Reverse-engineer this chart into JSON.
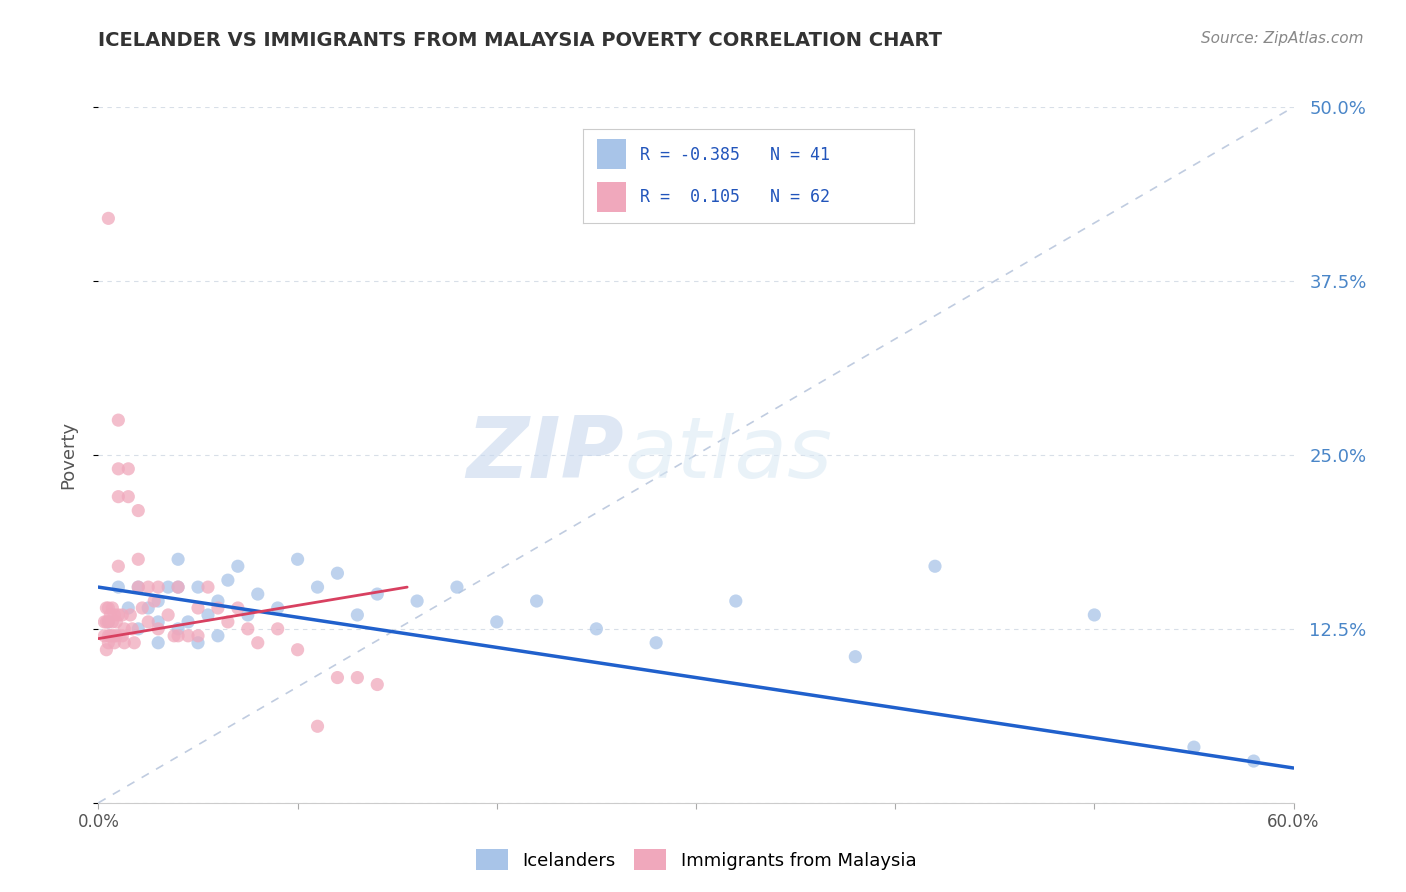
{
  "title": "ICELANDER VS IMMIGRANTS FROM MALAYSIA POVERTY CORRELATION CHART",
  "source_text": "Source: ZipAtlas.com",
  "ylabel": "Poverty",
  "legend_blue_label": "Icelanders",
  "legend_pink_label": "Immigrants from Malaysia",
  "legend_blue_r": "R = -0.385",
  "legend_blue_n": "N = 41",
  "legend_pink_r": "R =  0.105",
  "legend_pink_n": "N = 62",
  "blue_color": "#a8c4e8",
  "pink_color": "#f0a8bc",
  "blue_line_color": "#2060cc",
  "pink_line_color": "#d84060",
  "watermark_zip": "ZIP",
  "watermark_atlas": "atlas",
  "xmin": 0.0,
  "xmax": 0.6,
  "ymin": 0.0,
  "ymax": 0.5,
  "yticks": [
    0.0,
    0.125,
    0.25,
    0.375,
    0.5
  ],
  "ytick_labels_right": [
    "",
    "12.5%",
    "25.0%",
    "37.5%",
    "50.0%"
  ],
  "xtick_positions": [
    0.0,
    0.1,
    0.2,
    0.3,
    0.4,
    0.5,
    0.6
  ],
  "xtick_labels": [
    "0.0%",
    "",
    "",
    "",
    "",
    "",
    "60.0%"
  ],
  "grid_color": "#d8dfe8",
  "diag_line_x": [
    0.0,
    0.6
  ],
  "diag_line_y": [
    0.0,
    0.5
  ],
  "blue_trend_x": [
    0.0,
    0.6
  ],
  "blue_trend_y": [
    0.155,
    0.025
  ],
  "pink_trend_x": [
    0.0,
    0.155
  ],
  "pink_trend_y": [
    0.118,
    0.155
  ],
  "blue_dots_x": [
    0.005,
    0.01,
    0.015,
    0.02,
    0.02,
    0.025,
    0.03,
    0.03,
    0.03,
    0.035,
    0.04,
    0.04,
    0.04,
    0.045,
    0.05,
    0.05,
    0.055,
    0.06,
    0.06,
    0.065,
    0.07,
    0.075,
    0.08,
    0.09,
    0.1,
    0.11,
    0.12,
    0.13,
    0.14,
    0.16,
    0.18,
    0.2,
    0.22,
    0.25,
    0.28,
    0.32,
    0.38,
    0.42,
    0.5,
    0.55,
    0.58
  ],
  "blue_dots_y": [
    0.13,
    0.155,
    0.14,
    0.155,
    0.125,
    0.14,
    0.145,
    0.13,
    0.115,
    0.155,
    0.175,
    0.155,
    0.125,
    0.13,
    0.155,
    0.115,
    0.135,
    0.145,
    0.12,
    0.16,
    0.17,
    0.135,
    0.15,
    0.14,
    0.175,
    0.155,
    0.165,
    0.135,
    0.15,
    0.145,
    0.155,
    0.13,
    0.145,
    0.125,
    0.115,
    0.145,
    0.105,
    0.17,
    0.135,
    0.04,
    0.03
  ],
  "pink_dots_x": [
    0.003,
    0.003,
    0.004,
    0.004,
    0.004,
    0.005,
    0.005,
    0.005,
    0.005,
    0.005,
    0.006,
    0.006,
    0.007,
    0.007,
    0.007,
    0.008,
    0.008,
    0.008,
    0.009,
    0.009,
    0.01,
    0.01,
    0.01,
    0.01,
    0.01,
    0.012,
    0.012,
    0.013,
    0.013,
    0.015,
    0.015,
    0.016,
    0.017,
    0.018,
    0.02,
    0.02,
    0.02,
    0.022,
    0.025,
    0.025,
    0.028,
    0.03,
    0.03,
    0.035,
    0.038,
    0.04,
    0.04,
    0.045,
    0.05,
    0.05,
    0.055,
    0.06,
    0.065,
    0.07,
    0.075,
    0.08,
    0.09,
    0.1,
    0.11,
    0.12,
    0.13,
    0.14
  ],
  "pink_dots_y": [
    0.13,
    0.12,
    0.14,
    0.13,
    0.11,
    0.42,
    0.14,
    0.13,
    0.12,
    0.115,
    0.135,
    0.12,
    0.14,
    0.13,
    0.12,
    0.135,
    0.12,
    0.115,
    0.13,
    0.12,
    0.275,
    0.24,
    0.22,
    0.17,
    0.135,
    0.135,
    0.12,
    0.125,
    0.115,
    0.24,
    0.22,
    0.135,
    0.125,
    0.115,
    0.21,
    0.175,
    0.155,
    0.14,
    0.155,
    0.13,
    0.145,
    0.155,
    0.125,
    0.135,
    0.12,
    0.155,
    0.12,
    0.12,
    0.14,
    0.12,
    0.155,
    0.14,
    0.13,
    0.14,
    0.125,
    0.115,
    0.125,
    0.11,
    0.055,
    0.09,
    0.09,
    0.085
  ]
}
